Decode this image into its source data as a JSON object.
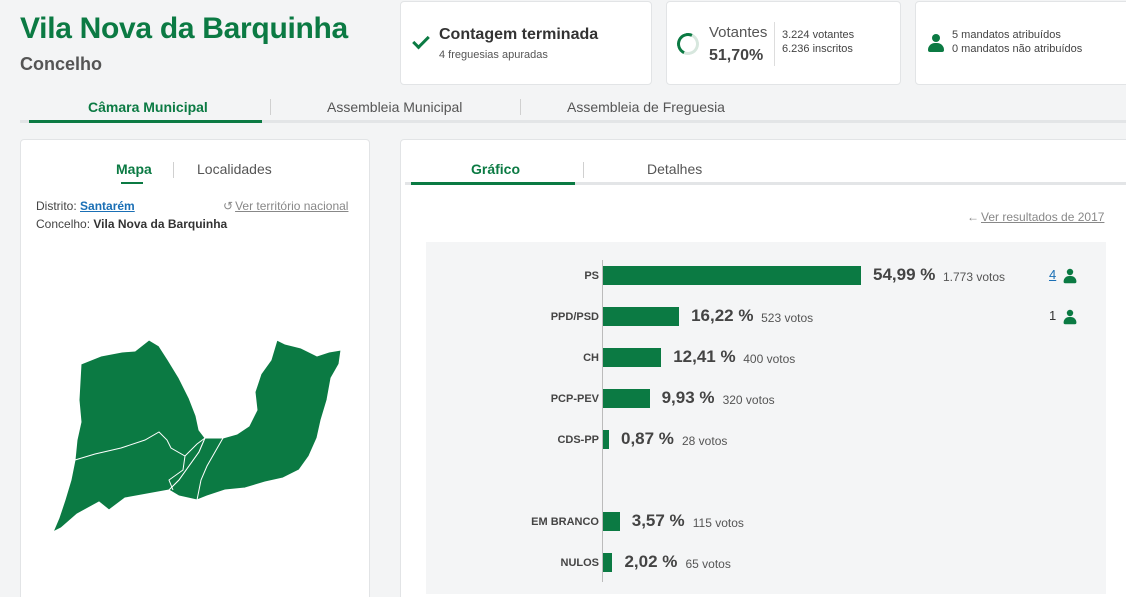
{
  "header": {
    "title": "Vila Nova da Barquinha",
    "subtitle": "Concelho"
  },
  "status_cards": {
    "count": {
      "title": "Contagem terminada",
      "subtitle": "4 freguesias apuradas",
      "icon": "check-icon"
    },
    "voters": {
      "label": "Votantes",
      "percent": "51,70%",
      "percent_value": 51.7,
      "voters": "3.224 votantes",
      "registered": "6.236 inscritos"
    },
    "seats": {
      "assigned": "5 mandatos atribuídos",
      "unassigned": "0 mandatos não atribuídos",
      "icon": "person-icon"
    }
  },
  "top_tabs": [
    {
      "label": "Câmara Municipal",
      "active": true
    },
    {
      "label": "Assembleia Municipal",
      "active": false
    },
    {
      "label": "Assembleia de Freguesia",
      "active": false
    }
  ],
  "left_panel": {
    "tabs": [
      {
        "label": "Mapa",
        "active": true
      },
      {
        "label": "Localidades",
        "active": false
      }
    ],
    "district_label": "Distrito:",
    "district_value": "Santarém",
    "municipality_label": "Concelho:",
    "municipality_value": "Vila Nova da Barquinha",
    "national_link": "Ver território nacional",
    "map_color": "#0b7a43"
  },
  "right_panel": {
    "tabs": [
      {
        "label": "Gráfico",
        "active": true
      },
      {
        "label": "Detalhes",
        "active": false
      }
    ],
    "previous_link": "Ver resultados de 2017"
  },
  "chart_data": {
    "type": "bar",
    "orientation": "horizontal",
    "categories": [
      "PS",
      "PPD/PSD",
      "CH",
      "PCP-PEV",
      "CDS-PP",
      "EM BRANCO",
      "NULOS"
    ],
    "values": [
      54.99,
      16.22,
      12.41,
      9.93,
      0.87,
      3.57,
      2.02
    ],
    "percent_labels": [
      "54,99 %",
      "16,22 %",
      "12,41 %",
      "9,93 %",
      "0,87 %",
      "3,57 %",
      "2,02 %"
    ],
    "votes": [
      "1.773 votos",
      "523 votos",
      "400 votos",
      "320 votos",
      "28 votos",
      "115 votos",
      "65 votos"
    ],
    "seats": [
      "4",
      "1",
      "",
      "",
      "",
      "",
      ""
    ],
    "bar_color": "#0b7a43"
  }
}
